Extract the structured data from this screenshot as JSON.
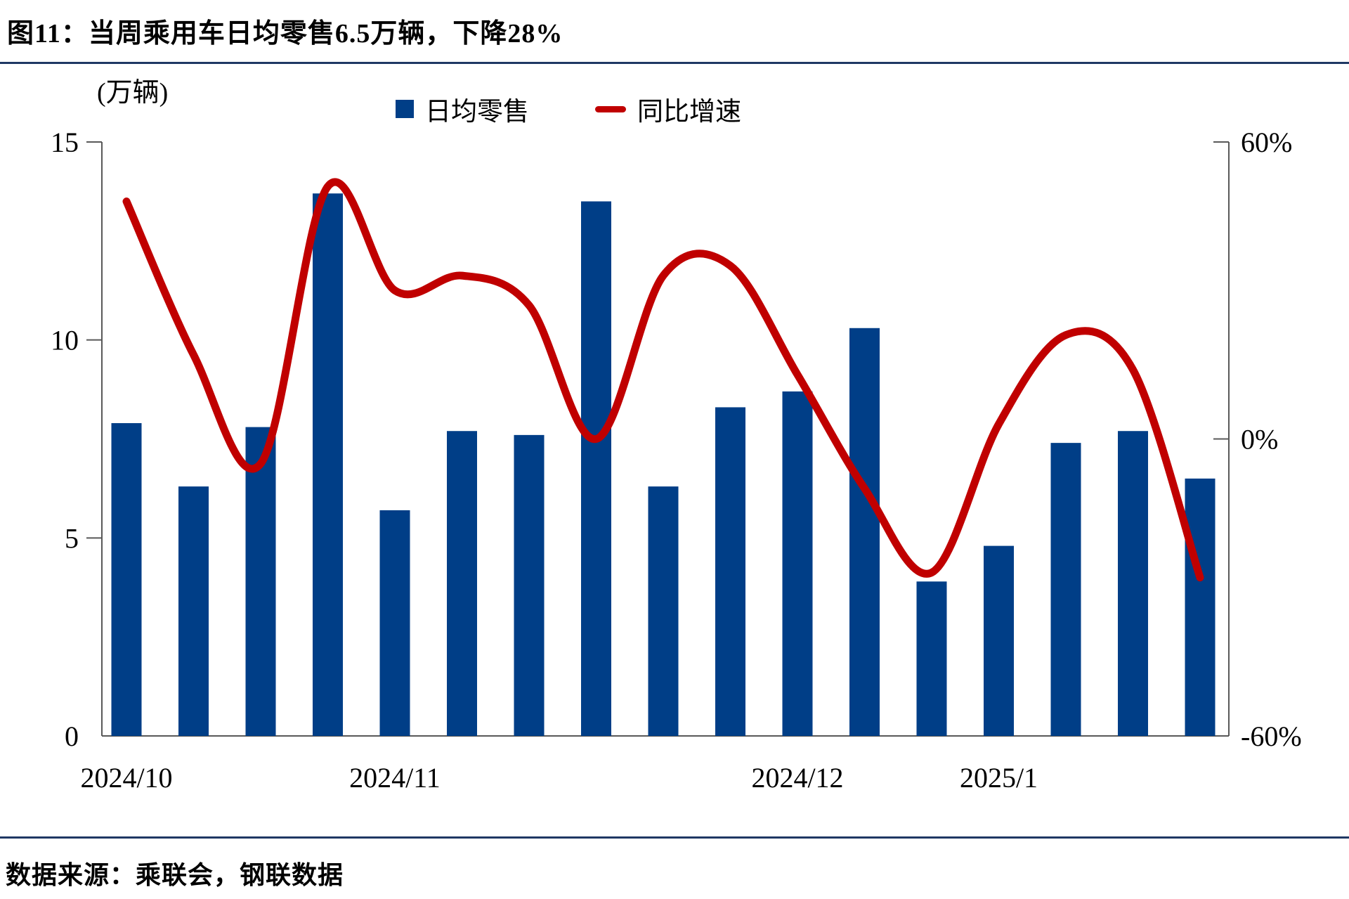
{
  "title": "图11：当周乘用车日均零售6.5万辆，下降28%",
  "unit_label": "(万辆)",
  "legend": {
    "bars": "日均零售",
    "line": "同比增速"
  },
  "source": "数据来源：乘联会，钢联数据",
  "colors": {
    "bar": "#003E87",
    "line": "#C00000",
    "axis": "#595959",
    "rule": "#1F3864",
    "text": "#000000"
  },
  "chart_data": {
    "type": "bar+line combo, weekly categories",
    "title": "当周乘用车日均零售6.5万辆，下降28%",
    "categories_count": 17,
    "month_labels": [
      {
        "label": "2024/10",
        "index": 0
      },
      {
        "label": "2024/11",
        "index": 4
      },
      {
        "label": "2024/12",
        "index": 10
      },
      {
        "label": "2025/1",
        "index": 13
      }
    ],
    "series": [
      {
        "name": "日均零售",
        "type": "bar",
        "axis": "left",
        "unit": "万辆",
        "values": [
          7.9,
          6.3,
          7.8,
          13.7,
          5.7,
          7.7,
          7.6,
          13.5,
          6.3,
          8.3,
          8.7,
          10.3,
          3.9,
          4.8,
          7.4,
          7.7,
          6.5
        ]
      },
      {
        "name": "同比增速",
        "type": "line",
        "axis": "right",
        "unit": "%",
        "values": [
          48,
          17,
          -5,
          51,
          30,
          33,
          27,
          0,
          33,
          35,
          13,
          -10,
          -27,
          3,
          21,
          14,
          -28
        ]
      }
    ],
    "y_left": {
      "label": "(万辆)",
      "ticks": [
        15,
        10,
        5,
        0
      ],
      "range": [
        0,
        15
      ],
      "grid": false
    },
    "y_right": {
      "tick_labels": [
        "60%",
        "0%",
        "-60%"
      ],
      "tick_values": [
        60,
        0,
        -60
      ],
      "range": [
        -60,
        60
      ]
    },
    "legend_position": "top-center"
  }
}
